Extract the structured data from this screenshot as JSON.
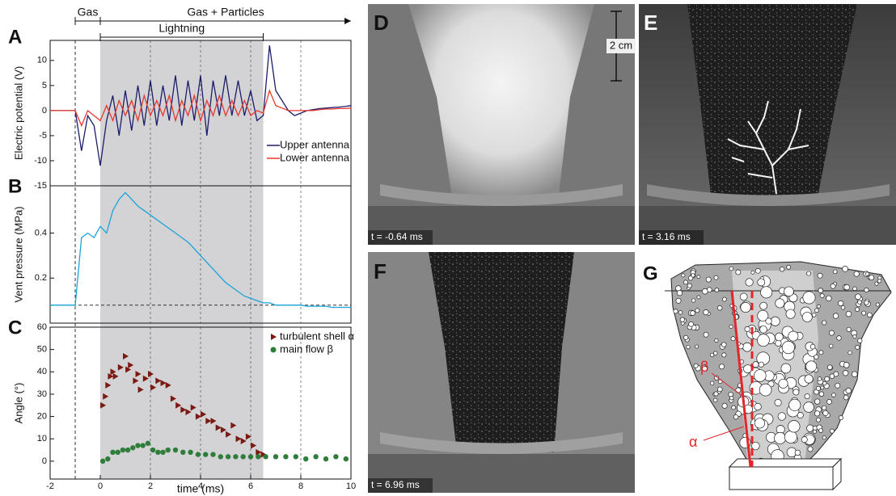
{
  "chart_data": [
    {
      "type": "line",
      "panel_label": "A",
      "ylabel": "Electric potential (V)",
      "xlim": [
        -2,
        10
      ],
      "ylim": [
        -15,
        14
      ],
      "yticks": [
        -15,
        -10,
        -5,
        0,
        5,
        10
      ],
      "legend": "lower right",
      "highlight": [
        0,
        6.5
      ],
      "reference_x": -1,
      "annotations": [
        {
          "text": "Gas",
          "x": [
            -1,
            0
          ]
        },
        {
          "text": "Gas + Particles",
          "x": [
            0,
            10
          ]
        },
        {
          "text": "Lightning",
          "x": [
            0,
            6.5
          ]
        }
      ],
      "x": [
        -2,
        -1.75,
        -1.5,
        -1.25,
        -1,
        -0.75,
        -0.5,
        -0.25,
        0,
        0.25,
        0.5,
        0.75,
        1,
        1.25,
        1.5,
        1.75,
        2,
        2.25,
        2.5,
        2.75,
        3,
        3.25,
        3.5,
        3.75,
        4,
        4.25,
        4.5,
        4.75,
        5,
        5.25,
        5.5,
        5.75,
        6,
        6.25,
        6.5,
        6.75,
        7,
        7.25,
        7.5,
        7.75,
        8,
        8.25,
        8.5,
        8.75,
        9,
        9.25,
        9.5,
        9.75,
        10
      ],
      "series": [
        {
          "name": "Upper antenna",
          "color": "#1c1c6b",
          "values": [
            0,
            0,
            0,
            0,
            0,
            -8,
            -1,
            -3,
            -11,
            -2,
            3,
            -5,
            4,
            -4,
            5,
            -3,
            6,
            -3,
            5,
            -2,
            7,
            -3,
            6,
            -2,
            7,
            -5,
            6,
            -1,
            7,
            -1,
            6,
            -1,
            4,
            -2,
            -1,
            13,
            4,
            2,
            0,
            -1,
            -0.5,
            0,
            0.2,
            0.4,
            0.5,
            0.6,
            0.7,
            0.8,
            1
          ]
        },
        {
          "name": "Lower antenna",
          "color": "#e8382b",
          "values": [
            0,
            0,
            0,
            0,
            0,
            -3,
            0,
            -1,
            -2,
            1,
            -2,
            2,
            -1,
            2,
            -2,
            3,
            -1,
            2,
            -1,
            3,
            -2,
            2,
            -1,
            3,
            -2,
            2,
            -1,
            3,
            -1,
            2,
            -1,
            2,
            -1,
            0,
            -0.5,
            4,
            1,
            0.5,
            0,
            0,
            0,
            0,
            0,
            0.2,
            0.3,
            0.3,
            0.4,
            0.4,
            0.5
          ]
        }
      ]
    },
    {
      "type": "line",
      "panel_label": "B",
      "ylabel": "Vent pressure (MPa)",
      "xlim": [
        -2,
        10
      ],
      "ylim": [
        0,
        0.61
      ],
      "yticks": [
        0.2,
        0.4
      ],
      "reference_y": 0.08,
      "color": "#1aa3d9",
      "x": [
        -2,
        -1.75,
        -1.5,
        -1.25,
        -1,
        -0.75,
        -0.5,
        -0.25,
        0,
        0.25,
        0.5,
        0.75,
        1,
        1.25,
        1.5,
        1.75,
        2,
        2.25,
        2.5,
        2.75,
        3,
        3.25,
        3.5,
        3.75,
        4,
        4.25,
        4.5,
        4.75,
        5,
        5.25,
        5.5,
        5.75,
        6,
        6.25,
        6.5,
        6.75,
        7,
        7.25,
        7.5,
        7.75,
        8,
        8.25,
        8.5,
        8.75,
        9,
        9.25,
        9.5,
        9.75,
        10
      ],
      "values": [
        0.08,
        0.08,
        0.08,
        0.08,
        0.08,
        0.38,
        0.4,
        0.38,
        0.43,
        0.4,
        0.5,
        0.55,
        0.58,
        0.55,
        0.52,
        0.5,
        0.48,
        0.46,
        0.44,
        0.42,
        0.4,
        0.38,
        0.36,
        0.33,
        0.3,
        0.27,
        0.24,
        0.21,
        0.18,
        0.16,
        0.14,
        0.12,
        0.11,
        0.1,
        0.09,
        0.09,
        0.08,
        0.08,
        0.08,
        0.08,
        0.08,
        0.075,
        0.075,
        0.075,
        0.075,
        0.07,
        0.07,
        0.07,
        0.07
      ]
    },
    {
      "type": "scatter",
      "panel_label": "C",
      "ylabel": "Angle (°)",
      "xlabel": "time (ms)",
      "xlim": [
        -2,
        10
      ],
      "xticks": [
        -2,
        0,
        2,
        4,
        6,
        8,
        10
      ],
      "ylim": [
        -8,
        60
      ],
      "yticks": [
        0,
        10,
        20,
        30,
        40,
        50,
        60
      ],
      "legend": "upper right",
      "series": [
        {
          "name": "turbulent shell α",
          "color": "#7a1a12",
          "marker": "triangle",
          "x": [
            0.1,
            0.2,
            0.3,
            0.4,
            0.5,
            0.6,
            0.8,
            1,
            1.1,
            1.2,
            1.4,
            1.5,
            1.6,
            1.8,
            2,
            2.1,
            2.3,
            2.5,
            2.7,
            2.9,
            3.1,
            3.3,
            3.5,
            3.7,
            3.9,
            4.1,
            4.3,
            4.5,
            4.7,
            4.9,
            5.1,
            5.3,
            5.5,
            5.7,
            5.9,
            6.1,
            6.3,
            6.5
          ],
          "values": [
            25,
            29,
            34,
            38,
            40,
            38,
            42,
            47,
            41,
            43,
            36,
            39,
            32,
            37,
            39,
            33,
            36,
            35,
            34,
            28,
            25,
            23,
            22,
            24,
            20,
            21,
            18,
            18,
            15,
            14,
            12,
            16,
            10,
            9,
            11,
            7,
            4,
            3
          ]
        },
        {
          "name": "main flow β",
          "color": "#2e7d3a",
          "marker": "circle",
          "x": [
            0.1,
            0.3,
            0.5,
            0.7,
            0.9,
            1.1,
            1.3,
            1.5,
            1.7,
            1.9,
            2.1,
            2.3,
            2.5,
            2.7,
            3,
            3.3,
            3.6,
            3.9,
            4.2,
            4.5,
            4.8,
            5.1,
            5.4,
            5.7,
            6,
            6.3,
            6.6,
            7,
            7.4,
            7.8,
            8.2,
            8.6,
            9,
            9.4,
            9.8
          ],
          "values": [
            0,
            1,
            4,
            4,
            5,
            5,
            6,
            7,
            7,
            8,
            5,
            4,
            4,
            5,
            5,
            4,
            4,
            3,
            3,
            3,
            2,
            2,
            2,
            2,
            2,
            2,
            2,
            2,
            2,
            2,
            1,
            2,
            1,
            2,
            1
          ]
        }
      ]
    }
  ],
  "photos": [
    {
      "label": "D",
      "time": "t = -0.64 ms"
    },
    {
      "label": "E",
      "time": "t = 3.16 ms"
    },
    {
      "label": "F",
      "time": "t = 6.96 ms"
    }
  ],
  "scale_bar": "2 cm",
  "diagram": {
    "label": "G",
    "angle_labels": [
      "β",
      "α"
    ]
  }
}
